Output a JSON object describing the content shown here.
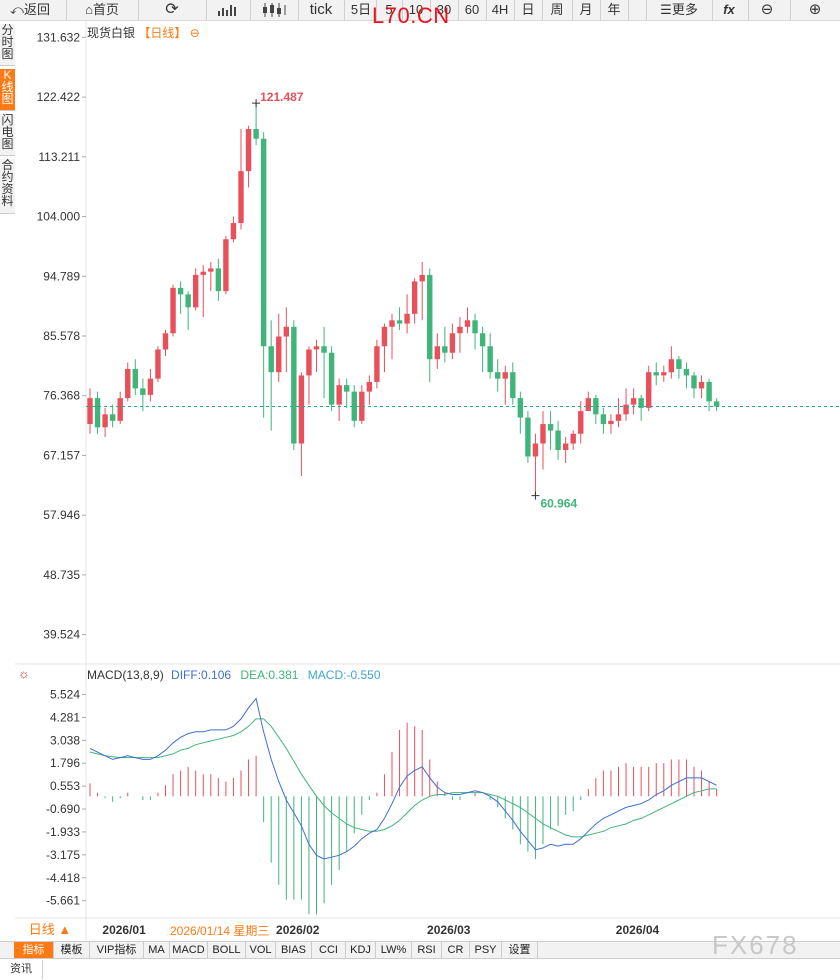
{
  "toolbar": {
    "back": "返回",
    "home": "首页",
    "tick": "tick",
    "periods": [
      "5日",
      "5",
      "10",
      "30",
      "60",
      "4H",
      "日",
      "周",
      "月",
      "年"
    ],
    "more": "更多",
    "fx": "fx"
  },
  "ticker": "L70.CN",
  "sidebar": [
    {
      "label": "分时图",
      "active": false
    },
    {
      "label": "K线图",
      "active": true
    },
    {
      "label": "闪电图",
      "active": false
    },
    {
      "label": "合约资料",
      "active": false
    }
  ],
  "chart_title": {
    "name": "现货白银",
    "period": "【日线】",
    "marker": "⊖"
  },
  "macd_header": {
    "name": "MACD(13,8,9)",
    "diff": "DIFF:0.106",
    "dea": "DEA:0.381",
    "macd": "MACD:-0.550"
  },
  "period_button": "日线 ▲",
  "cursor_date": "2026/01/14 星期三",
  "tabs": [
    "指标",
    "模板",
    "VIP指标",
    "MA",
    "MACD",
    "BOLL",
    "VOL",
    "BIAS",
    "CCI",
    "KDJ",
    "LW%",
    "RSI",
    "CR",
    "PSY",
    "设置"
  ],
  "footer_tab": "资讯",
  "watermark": "FX678",
  "colors": {
    "up": "#e8515c",
    "down": "#3fb57a",
    "diff": "#3d6fd4",
    "dea": "#3fb57a",
    "accent": "#ff7a14"
  },
  "chart_data": [
    {
      "type": "candlestick",
      "title": "现货白银",
      "y_ticks": [
        131.632,
        122.422,
        113.211,
        104.0,
        94.789,
        85.578,
        76.368,
        67.157,
        57.946,
        48.735,
        39.524
      ],
      "ylim": [
        35.0,
        134.0
      ],
      "x_ticks": [
        "2026/01",
        "2026/02",
        "2026/03",
        "2026/04"
      ],
      "annotations": [
        {
          "label": "121.487",
          "kind": "high"
        },
        {
          "label": "60.964",
          "kind": "low"
        }
      ],
      "last_price_line": 74.7,
      "candles": [
        [
          72.0,
          76.0,
          77.5,
          70.5
        ],
        [
          76.0,
          71.5,
          77.0,
          70.5
        ],
        [
          71.5,
          73.5,
          74.5,
          70.0
        ],
        [
          73.5,
          72.5,
          75.0,
          71.5
        ],
        [
          72.5,
          76.0,
          77.0,
          72.0
        ],
        [
          76.0,
          80.5,
          81.5,
          75.5
        ],
        [
          80.5,
          77.5,
          82.0,
          76.5
        ],
        [
          77.5,
          76.5,
          79.0,
          74.0
        ],
        [
          76.5,
          79.0,
          80.5,
          75.5
        ],
        [
          79.0,
          83.5,
          84.0,
          78.5
        ],
        [
          83.5,
          86.0,
          86.5,
          82.5
        ],
        [
          86.0,
          93.0,
          93.5,
          85.5
        ],
        [
          93.0,
          92.0,
          94.0,
          89.0
        ],
        [
          92.0,
          90.0,
          92.5,
          86.5
        ],
        [
          90.0,
          95.0,
          96.0,
          89.5
        ],
        [
          95.0,
          95.5,
          96.5,
          88.5
        ],
        [
          95.5,
          96.0,
          97.0,
          92.5
        ],
        [
          96.0,
          92.5,
          97.5,
          91.0
        ],
        [
          92.5,
          100.5,
          101.0,
          92.0
        ],
        [
          100.5,
          103.0,
          104.0,
          100.0
        ],
        [
          103.0,
          111.0,
          117.5,
          102.0
        ],
        [
          111.0,
          117.5,
          118.0,
          108.5
        ],
        [
          117.5,
          116.0,
          121.487,
          115.0
        ],
        [
          116.0,
          84.0,
          117.0,
          73.0
        ],
        [
          84.0,
          80.0,
          88.0,
          71.0
        ],
        [
          80.0,
          85.5,
          89.0,
          78.5
        ],
        [
          85.5,
          87.0,
          90.0,
          80.0
        ],
        [
          87.0,
          69.0,
          88.0,
          68.0
        ],
        [
          69.0,
          79.5,
          80.0,
          64.0
        ],
        [
          79.5,
          83.5,
          84.0,
          75.0
        ],
        [
          83.5,
          84.0,
          85.0,
          80.0
        ],
        [
          84.0,
          83.0,
          87.0,
          76.0
        ],
        [
          83.0,
          75.0,
          84.0,
          74.0
        ],
        [
          75.0,
          78.0,
          79.0,
          72.5
        ],
        [
          78.0,
          77.0,
          79.0,
          74.5
        ],
        [
          77.0,
          72.5,
          78.0,
          71.5
        ],
        [
          72.5,
          77.0,
          78.0,
          72.0
        ],
        [
          77.0,
          78.5,
          79.5,
          75.0
        ],
        [
          78.5,
          84.0,
          85.0,
          77.5
        ],
        [
          84.0,
          87.0,
          87.5,
          80.0
        ],
        [
          87.0,
          88.0,
          89.0,
          82.0
        ],
        [
          88.0,
          87.5,
          90.0,
          86.5
        ],
        [
          87.5,
          89.0,
          92.0,
          86.0
        ],
        [
          89.0,
          94.0,
          94.5,
          87.5
        ],
        [
          94.0,
          95.0,
          97.0,
          88.0
        ],
        [
          95.0,
          82.0,
          96.0,
          78.5
        ],
        [
          82.0,
          84.0,
          86.0,
          80.5
        ],
        [
          84.0,
          83.0,
          87.0,
          81.5
        ],
        [
          83.0,
          86.0,
          87.5,
          82.0
        ],
        [
          86.0,
          87.0,
          88.5,
          83.0
        ],
        [
          87.0,
          88.0,
          90.0,
          86.0
        ],
        [
          88.0,
          86.0,
          89.0,
          83.5
        ],
        [
          86.0,
          84.0,
          87.0,
          80.0
        ],
        [
          84.0,
          80.0,
          86.0,
          79.0
        ],
        [
          80.0,
          79.0,
          82.0,
          77.0
        ],
        [
          79.0,
          80.0,
          81.0,
          75.0
        ],
        [
          80.0,
          76.0,
          81.5,
          75.0
        ],
        [
          76.0,
          73.0,
          77.0,
          70.5
        ],
        [
          73.0,
          67.0,
          74.0,
          66.0
        ],
        [
          67.0,
          69.0,
          70.5,
          60.964
        ],
        [
          69.0,
          72.0,
          74.0,
          65.0
        ],
        [
          72.0,
          71.0,
          74.0,
          68.0
        ],
        [
          71.0,
          68.0,
          72.5,
          66.5
        ],
        [
          68.0,
          69.0,
          70.0,
          66.0
        ],
        [
          69.0,
          70.5,
          71.0,
          68.0
        ],
        [
          70.5,
          74.0,
          75.5,
          69.0
        ],
        [
          74.0,
          76.0,
          77.0,
          74.0
        ],
        [
          76.0,
          73.5,
          76.5,
          72.0
        ],
        [
          73.5,
          72.0,
          74.5,
          70.5
        ],
        [
          72.0,
          72.5,
          73.5,
          70.5
        ],
        [
          72.5,
          73.5,
          76.0,
          71.5
        ],
        [
          73.5,
          75.0,
          77.5,
          72.5
        ],
        [
          75.0,
          76.0,
          77.5,
          73.5
        ],
        [
          76.0,
          74.5,
          76.5,
          72.5
        ],
        [
          74.5,
          80.0,
          81.0,
          74.0
        ],
        [
          80.0,
          79.5,
          81.5,
          78.0
        ],
        [
          79.5,
          80.0,
          81.0,
          78.5
        ],
        [
          80.0,
          82.0,
          84.0,
          79.0
        ],
        [
          82.0,
          80.5,
          82.5,
          79.0
        ],
        [
          80.5,
          79.5,
          81.5,
          77.5
        ],
        [
          79.5,
          77.5,
          80.0,
          76.0
        ],
        [
          77.5,
          78.5,
          79.5,
          76.0
        ],
        [
          78.5,
          75.5,
          79.0,
          74.0
        ],
        [
          75.5,
          74.7,
          76.0,
          74.0
        ]
      ]
    },
    {
      "type": "macd",
      "title": "MACD(13,8,9)",
      "y_ticks": [
        5.524,
        4.281,
        3.038,
        1.796,
        0.553,
        -0.69,
        -1.933,
        -3.175,
        -4.418,
        -5.661
      ],
      "ylim": [
        -6.6,
        6.2
      ],
      "series": [
        {
          "name": "DIFF",
          "values": [
            2.6,
            2.4,
            2.2,
            2.0,
            2.1,
            2.2,
            2.1,
            2.0,
            2.0,
            2.2,
            2.5,
            2.9,
            3.2,
            3.4,
            3.5,
            3.5,
            3.6,
            3.6,
            3.6,
            3.8,
            4.2,
            4.8,
            5.3,
            3.5,
            2.0,
            0.8,
            -0.2,
            -0.9,
            -1.6,
            -2.6,
            -3.2,
            -3.4,
            -3.3,
            -3.2,
            -3.0,
            -2.7,
            -2.3,
            -2.0,
            -1.8,
            -1.2,
            -0.4,
            0.5,
            1.1,
            1.4,
            1.6,
            1.0,
            0.5,
            0.2,
            0.1,
            0.1,
            0.2,
            0.3,
            0.2,
            0.0,
            -0.3,
            -0.8,
            -1.3,
            -1.9,
            -2.4,
            -2.9,
            -2.8,
            -2.6,
            -2.7,
            -2.6,
            -2.6,
            -2.3,
            -1.9,
            -1.5,
            -1.2,
            -1.0,
            -0.8,
            -0.6,
            -0.5,
            -0.4,
            -0.2,
            0.1,
            0.3,
            0.6,
            0.8,
            1.0,
            1.0,
            1.0,
            0.8,
            0.6
          ]
        },
        {
          "name": "DEA",
          "values": [
            2.4,
            2.3,
            2.2,
            2.15,
            2.1,
            2.1,
            2.1,
            2.1,
            2.1,
            2.1,
            2.2,
            2.3,
            2.5,
            2.6,
            2.8,
            2.9,
            3.0,
            3.1,
            3.2,
            3.3,
            3.5,
            3.8,
            4.2,
            4.2,
            3.8,
            3.2,
            2.6,
            1.9,
            1.2,
            0.6,
            0.0,
            -0.5,
            -0.9,
            -1.2,
            -1.5,
            -1.7,
            -1.8,
            -1.9,
            -1.9,
            -1.8,
            -1.6,
            -1.3,
            -0.9,
            -0.5,
            -0.2,
            0.0,
            0.1,
            0.1,
            0.2,
            0.2,
            0.2,
            0.2,
            0.2,
            0.1,
            0.0,
            -0.2,
            -0.4,
            -0.6,
            -0.9,
            -1.2,
            -1.5,
            -1.7,
            -1.9,
            -2.1,
            -2.2,
            -2.2,
            -2.1,
            -2.0,
            -1.9,
            -1.7,
            -1.6,
            -1.5,
            -1.3,
            -1.2,
            -1.0,
            -0.8,
            -0.6,
            -0.4,
            -0.2,
            0.0,
            0.2,
            0.3,
            0.4,
            0.4
          ]
        },
        {
          "name": "MACD",
          "values": [
            0.7,
            0.2,
            -0.1,
            -0.3,
            -0.1,
            0.2,
            0.0,
            -0.2,
            -0.2,
            0.2,
            0.6,
            1.2,
            1.4,
            1.6,
            1.4,
            1.2,
            1.2,
            1.0,
            0.8,
            1.0,
            1.4,
            2.0,
            2.2,
            -1.4,
            -3.6,
            -4.8,
            -5.6,
            -5.6,
            -5.6,
            -6.4,
            -6.4,
            -5.8,
            -4.8,
            -4.0,
            -3.0,
            -2.0,
            -1.0,
            -0.2,
            0.2,
            1.2,
            2.4,
            3.6,
            4.0,
            3.8,
            3.6,
            2.0,
            0.8,
            0.2,
            -0.2,
            -0.2,
            0.0,
            0.2,
            0.0,
            -0.2,
            -0.6,
            -1.2,
            -1.8,
            -2.6,
            -3.0,
            -3.4,
            -2.6,
            -1.8,
            -1.6,
            -1.0,
            -0.8,
            -0.2,
            0.4,
            1.0,
            1.4,
            1.4,
            1.6,
            1.8,
            1.6,
            1.6,
            1.6,
            1.8,
            1.8,
            2.0,
            2.0,
            2.0,
            1.6,
            1.4,
            0.8,
            0.4
          ]
        }
      ]
    }
  ]
}
